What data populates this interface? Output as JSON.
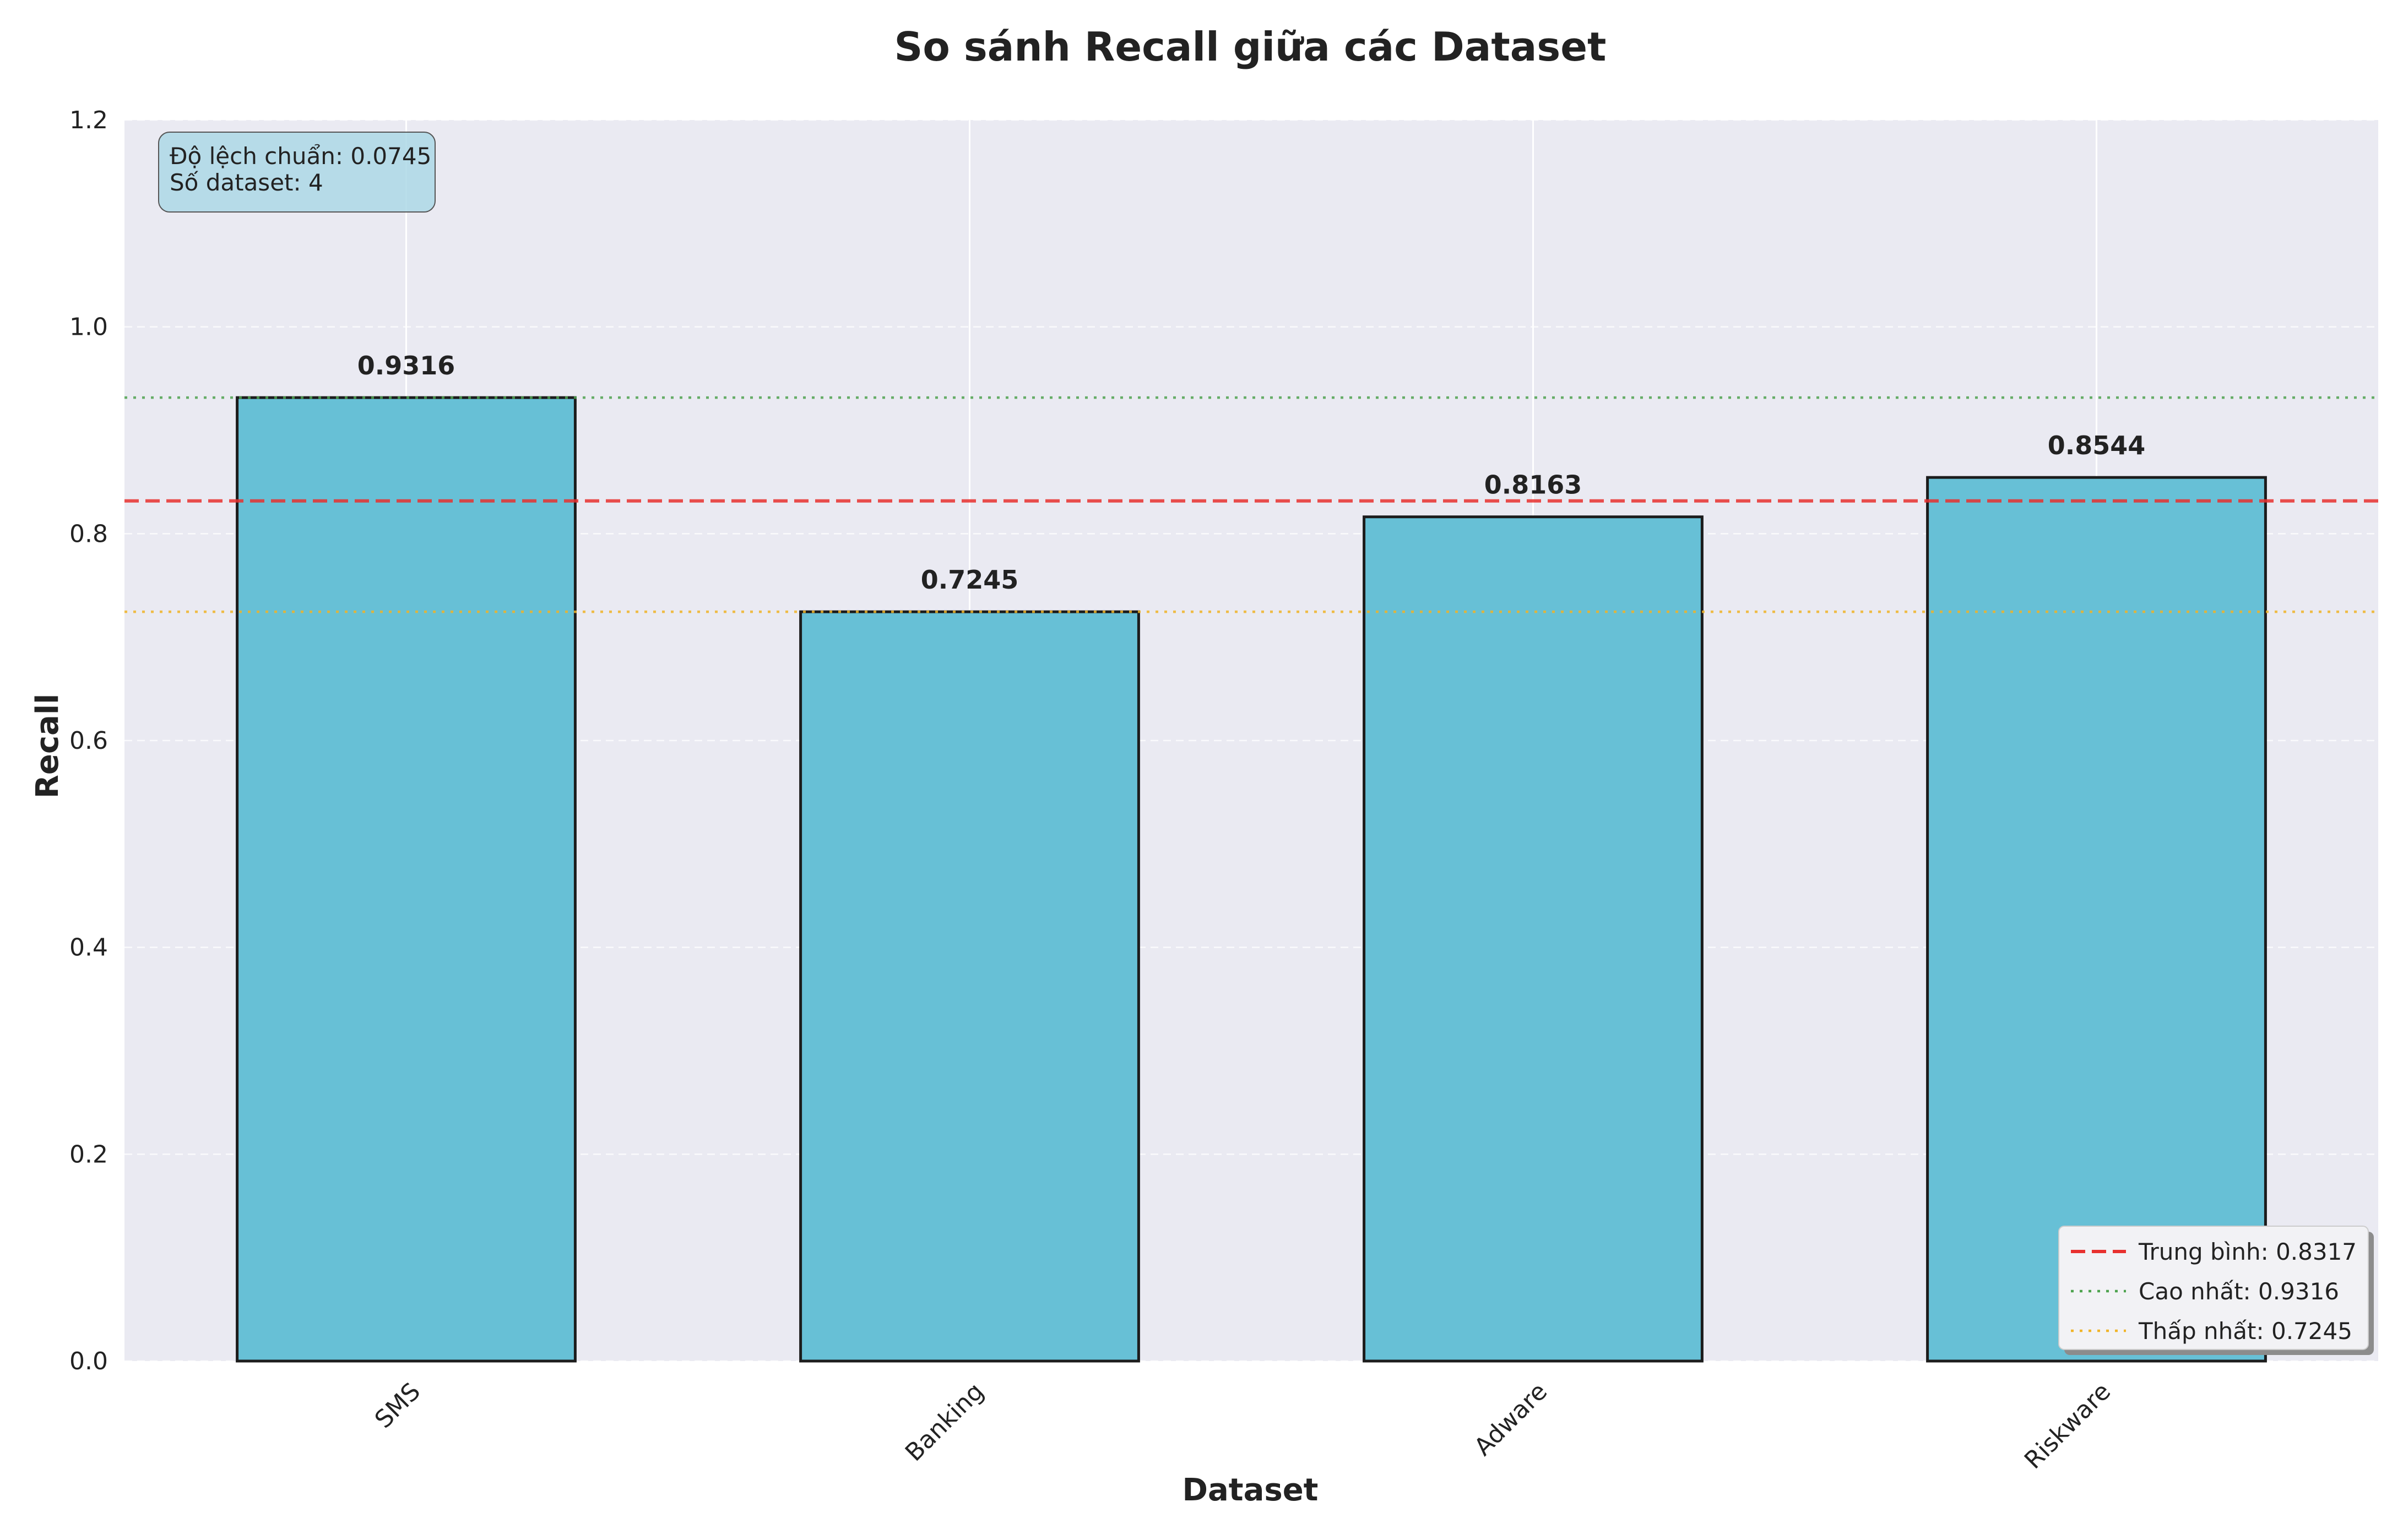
{
  "chart_data": {
    "type": "bar",
    "title": "So sánh Recall giữa các Dataset",
    "xlabel": "Dataset",
    "ylabel": "Recall",
    "categories": [
      "SMS",
      "Banking",
      "Adware",
      "Riskware"
    ],
    "values": [
      0.9316,
      0.7245,
      0.8163,
      0.8544
    ],
    "value_labels": [
      "0.9316",
      "0.7245",
      "0.8163",
      "0.8544"
    ],
    "ylim": [
      0,
      1.2
    ],
    "yticks": [
      0.0,
      0.2,
      0.4,
      0.6,
      0.8,
      1.0,
      1.2
    ],
    "ytick_labels": [
      "0.0",
      "0.2",
      "0.4",
      "0.6",
      "0.8",
      "1.0",
      "1.2"
    ],
    "grid": true,
    "bar_color": "#67c0d6",
    "reference_lines": [
      {
        "label": "Trung bình: 0.8317",
        "value": 0.8317,
        "style": "dashed",
        "color": "#e8312f"
      },
      {
        "label": "Cao nhất: 0.9316",
        "value": 0.9316,
        "style": "dotted",
        "color": "#4fa34f"
      },
      {
        "label": "Thấp nhất: 0.7245",
        "value": 0.7245,
        "style": "dotted",
        "color": "#f0b429"
      }
    ],
    "legend_position": "bottom-right",
    "stats_box": {
      "lines": [
        "Độ lệch chuẩn: 0.0745",
        "Số dataset: 4"
      ],
      "position": "top-left"
    }
  }
}
